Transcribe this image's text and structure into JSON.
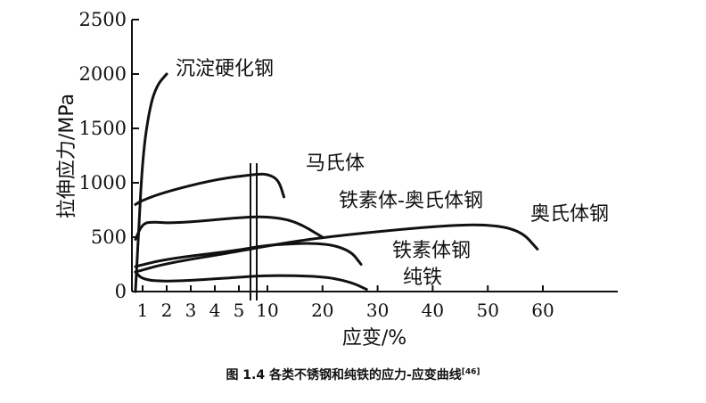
{
  "chart_data": {
    "type": "line",
    "ylabel": "拉伸应力/MPa",
    "xlabel": "应变/%",
    "yticks": [
      0,
      500,
      1000,
      1500,
      2000,
      2500
    ],
    "ylim": [
      0,
      2500
    ],
    "x_scale": "broken: 1–5 expanded, break, then 10–60 linear",
    "xticks_left": [
      1,
      2,
      3,
      4,
      5
    ],
    "xticks_right": [
      10,
      20,
      30,
      40,
      50,
      60
    ],
    "grid": false,
    "series": [
      {
        "name": "沉淀硬化钢",
        "x": [
          0.7,
          0.8,
          1.0,
          1.3,
          1.6,
          2.0
        ],
        "y": [
          0,
          400,
          1250,
          1700,
          1900,
          2000
        ]
      },
      {
        "name": "马氏体",
        "x": [
          0.7,
          1.0,
          2.0,
          4.0,
          8,
          10,
          12,
          13
        ],
        "y": [
          800,
          840,
          920,
          1030,
          1080,
          1080,
          1030,
          870
        ]
      },
      {
        "name": "铁素体-奥氏体钢",
        "x": [
          0.7,
          1.0,
          1.5,
          2.0,
          3.0,
          5.0,
          10,
          15,
          20
        ],
        "y": [
          480,
          630,
          640,
          630,
          640,
          680,
          690,
          650,
          500
        ]
      },
      {
        "name": "奥氏体钢",
        "x": [
          0.7,
          2.0,
          5.0,
          10,
          20,
          40,
          50,
          56,
          59
        ],
        "y": [
          180,
          260,
          370,
          420,
          500,
          600,
          620,
          560,
          390
        ]
      },
      {
        "name": "铁素体钢",
        "x": [
          0.7,
          2.0,
          5.0,
          10,
          20,
          25,
          27
        ],
        "y": [
          230,
          300,
          380,
          430,
          450,
          380,
          250
        ]
      },
      {
        "name": "纯铁",
        "x": [
          0.7,
          1.0,
          2.0,
          5.0,
          10,
          20,
          25,
          28
        ],
        "y": [
          180,
          110,
          90,
          130,
          150,
          140,
          90,
          20
        ]
      }
    ]
  },
  "caption": {
    "text": "图 1.4  各类不锈钢和纯铁的应力-应变曲线",
    "ref": "[46]"
  }
}
